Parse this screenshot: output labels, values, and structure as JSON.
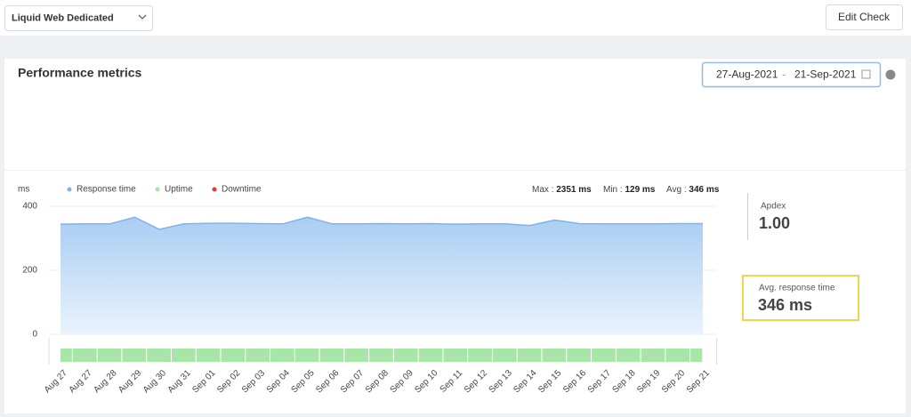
{
  "toolbar": {
    "select": "Liquid Web Dedicated",
    "button": "Edit Check"
  },
  "panel": {
    "title": "Performance metrics",
    "date_from": "27-Aug-2021",
    "date_separator": "-",
    "date_to": "21-Sep-2021"
  },
  "stats": [
    {
      "label": "Max :",
      "value": "2351 ms"
    },
    {
      "label": "Min :",
      "value": "129 ms"
    },
    {
      "label": "Avg :",
      "value": "346 ms"
    }
  ],
  "apdex": {
    "label": "Apdex",
    "value": "1.00"
  },
  "avg_response": {
    "label": "Avg. response time",
    "value": "346 ms"
  },
  "chart_data": {
    "type": "area",
    "y_label": "ms",
    "categories": [
      "Aug 27",
      "Aug 27",
      "Aug 28",
      "Aug 29",
      "Aug 30",
      "Aug 31",
      "Sep 01",
      "Sep 02",
      "Sep 03",
      "Sep 04",
      "Sep 05",
      "Sep 06",
      "Sep 07",
      "Sep 08",
      "Sep 09",
      "Sep 10",
      "Sep 11",
      "Sep 12",
      "Sep 13",
      "Sep 14",
      "Sep 15",
      "Sep 16",
      "Sep 17",
      "Sep 18",
      "Sep 19",
      "Sep 20",
      "Sep 21"
    ],
    "series": [
      {
        "name": "Response time",
        "color": "#7fb3e8",
        "values": [
          344,
          345,
          345,
          366,
          328,
          345,
          347,
          347,
          346,
          345,
          366,
          345,
          345,
          346,
          345,
          346,
          344,
          345,
          345,
          340,
          357,
          346,
          345,
          345,
          345,
          346,
          346
        ]
      }
    ],
    "legend_extra": [
      {
        "name": "Uptime",
        "color": "#a8e6a8"
      },
      {
        "name": "Downtime",
        "color": "#e53935"
      }
    ],
    "ylim": [
      0,
      400
    ],
    "yticks": [
      0,
      200,
      400
    ],
    "grid": true
  }
}
